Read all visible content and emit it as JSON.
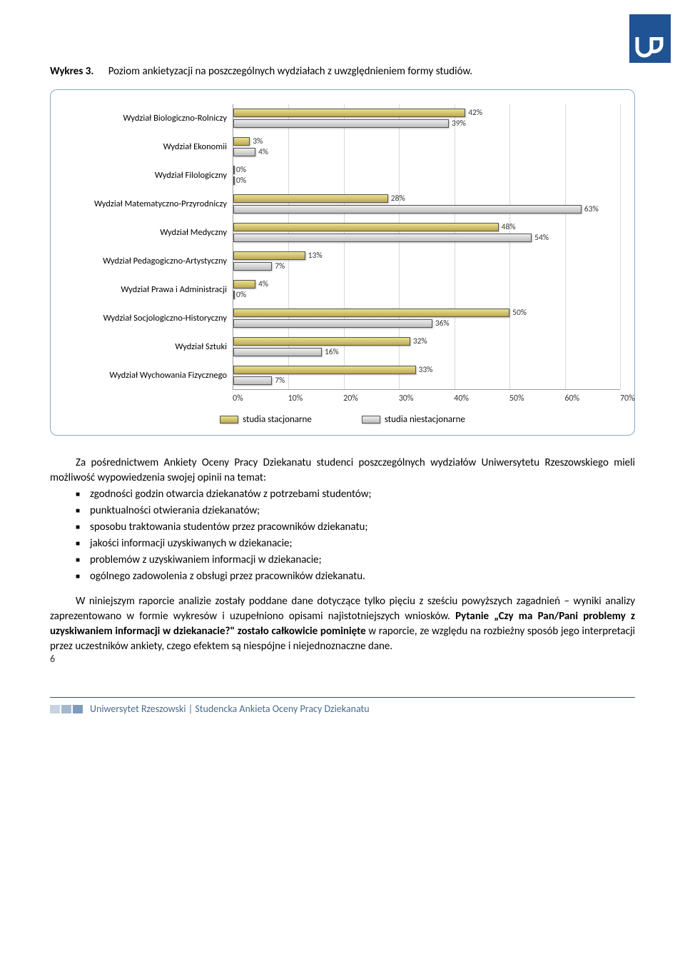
{
  "logo_color": "#205393",
  "title_label": "Wykres 3.",
  "title_text": "Poziom ankietyzacji na poszczególnych wydziałach z uwzględnieniem formy studiów.",
  "chart": {
    "type": "grouped-horizontal-bar",
    "x_min": 0,
    "x_max": 70,
    "x_tick_step": 10,
    "x_tick_labels": [
      "0%",
      "10%",
      "20%",
      "30%",
      "40%",
      "50%",
      "60%",
      "70%"
    ],
    "grid_color": "#d9d9d9",
    "border_color": "#999999",
    "series": [
      {
        "name": "studia stacjonarne",
        "fill": "linear-gradient(#e8e190, #bfa84e)"
      },
      {
        "name": "studia niestacjonarne",
        "fill": "linear-gradient(#efeded, #bdbdbd)"
      }
    ],
    "categories": [
      {
        "label": "Wydział Biologiczno-Rolniczy",
        "stac": 42,
        "niest": 39
      },
      {
        "label": "Wydział Ekonomii",
        "stac": 3,
        "niest": 4
      },
      {
        "label": "Wydział Filologiczny",
        "stac": 0,
        "niest": 0
      },
      {
        "label": "Wydział Matematyczno-Przyrodniczy",
        "stac": 28,
        "niest": 63
      },
      {
        "label": "Wydział Medyczny",
        "stac": 48,
        "niest": 54
      },
      {
        "label": "Wydział Pedagogiczno-Artystyczny",
        "stac": 13,
        "niest": 7
      },
      {
        "label": "Wydział Prawa i Administracji",
        "stac": 4,
        "niest": 0
      },
      {
        "label": "Wydział Socjologiczno-Historyczny",
        "stac": 50,
        "niest": 36
      },
      {
        "label": "Wydział Sztuki",
        "stac": 32,
        "niest": 16
      },
      {
        "label": "Wydział Wychowania Fizycznego",
        "stac": 33,
        "niest": 7
      }
    ]
  },
  "para_intro": "Za pośrednictwem Ankiety Oceny Pracy Dziekanatu studenci poszczególnych wydziałów Uniwersytetu Rzeszowskiego mieli możliwość  wypowiedzenia swojej opinii na temat:",
  "bullets": [
    "zgodności godzin otwarcia dziekanatów z potrzebami studentów;",
    "punktualności otwierania dziekanatów;",
    "sposobu traktowania studentów przez pracowników dziekanatu;",
    "jakości informacji uzyskiwanych w dziekanacie;",
    "problemów z uzyskiwaniem informacji w dziekanacie;",
    "ogólnego zadowolenia z obsługi przez pracowników dziekanatu."
  ],
  "para2_pre": "W niniejszym raporcie analizie zostały poddane dane dotyczące tylko pięciu z sześciu powyższych zagadnień – wyniki analizy zaprezentowano w formie wykresów i uzupełniono opisami najistotniejszych wniosków. ",
  "para2_bold1": "Pytanie „Czy ma Pan/Pani problemy z uzyskiwaniem informacji w dziekanacie?\" zostało całkowicie pominięte",
  "para2_post": " w raporcie, ze względu na rozbieżny sposób jego interpretacji przez uczestników ankiety, czego efektem są niespójne i niejednoznaczne dane.",
  "page_number": "6",
  "footer_text": "Uniwersytet Rzeszowski | Studencka Ankieta Oceny Pracy Dziekanatu",
  "footer_box_colors": [
    "#c7d3e0",
    "#a4b8cf",
    "#7c9bbd"
  ]
}
